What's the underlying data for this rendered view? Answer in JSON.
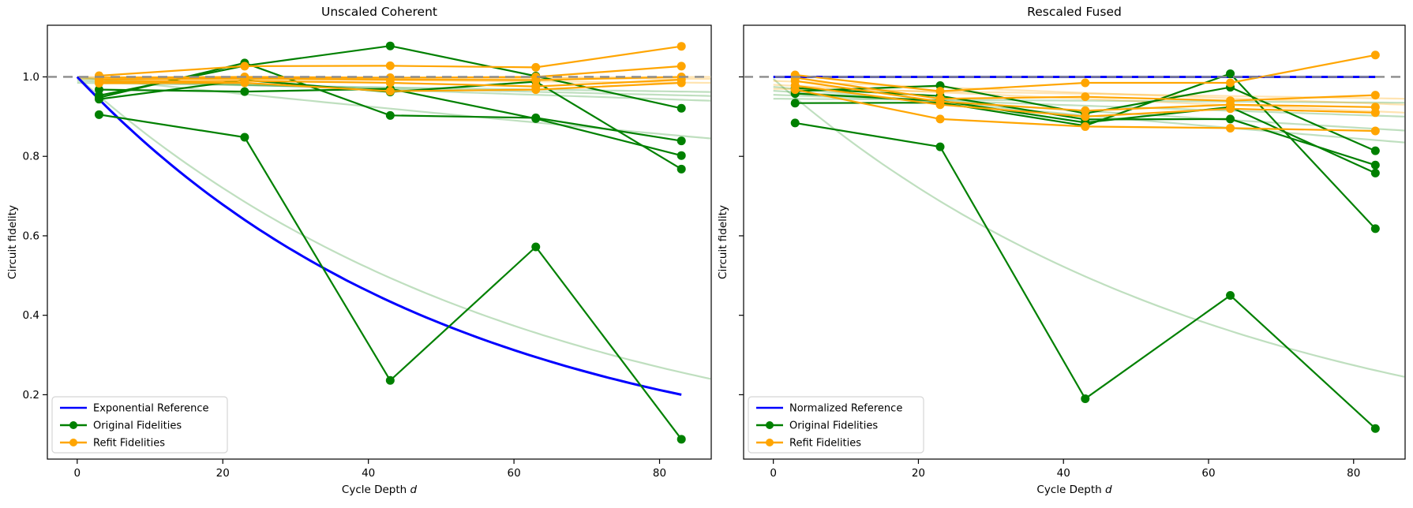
{
  "figure": {
    "background": "#ffffff"
  },
  "colors": {
    "reference_blue": "#0000ff",
    "original_green": "#008000",
    "refit_orange": "#ffa500",
    "dashed_gray": "#8c8c8c",
    "spine_black": "#000000",
    "legend_border": "#d5d5d5"
  },
  "chart_data": [
    {
      "type": "line",
      "title": "Unscaled Coherent",
      "xlabel": "Cycle Depth",
      "xlabel_var": "d",
      "ylabel": "Circuit fidelity",
      "xlim": [
        -4.1,
        87.1
      ],
      "ylim": [
        0.038,
        1.13
      ],
      "xticks": [
        "0",
        "20",
        "40",
        "60",
        "80"
      ],
      "xtick_values": [
        0,
        20,
        40,
        60,
        80
      ],
      "yticks": [
        "0.2",
        "0.4",
        "0.6",
        "0.8",
        "1.0"
      ],
      "ytick_values": [
        0.2,
        0.4,
        0.6,
        0.8,
        1.0
      ],
      "ytick_labels_visible": true,
      "hline_y": 1.0,
      "legend": [
        "Exponential Reference",
        "Original Fidelities",
        "Refit Fidelities"
      ],
      "legend_position": "lower-left",
      "reference": {
        "label": "Exponential Reference",
        "shape": "exp",
        "y0": 1.0,
        "y_end": 0.2,
        "x_start": 0,
        "x_end": 83
      },
      "x": [
        3,
        23,
        43,
        63,
        83
      ],
      "original_series": [
        {
          "name": "original-1",
          "values": [
            0.905,
            0.848,
            0.236,
            0.572,
            0.088
          ]
        },
        {
          "name": "original-2",
          "values": [
            0.953,
            1.028,
            1.078,
            1.002,
            0.921
          ]
        },
        {
          "name": "original-3",
          "values": [
            0.948,
            1.035,
            0.903,
            0.897,
            0.839
          ]
        },
        {
          "name": "original-4",
          "values": [
            0.944,
            0.992,
            0.962,
            0.988,
            0.768
          ]
        },
        {
          "name": "original-5",
          "values": [
            0.968,
            0.963,
            0.97,
            0.895,
            0.802
          ]
        }
      ],
      "refit_series": [
        {
          "name": "refit-1",
          "values": [
            1.003,
            1.027,
            1.028,
            1.024,
            1.077
          ]
        },
        {
          "name": "refit-2",
          "values": [
            0.998,
            1.0,
            0.998,
            1.0,
            1.027
          ]
        },
        {
          "name": "refit-3",
          "values": [
            0.993,
            0.996,
            0.993,
            0.992,
            1.0
          ]
        },
        {
          "name": "refit-4",
          "values": [
            0.988,
            0.99,
            0.985,
            0.976,
            0.993
          ]
        },
        {
          "name": "refit-5",
          "values": [
            0.984,
            0.985,
            0.964,
            0.968,
            0.985
          ]
        }
      ],
      "fit_curves_green": [
        {
          "y0": 1.0,
          "y_end": 0.24
        },
        {
          "y0": 1.0,
          "y_end": 0.845
        },
        {
          "y0": 0.995,
          "y_end": 0.94
        },
        {
          "y0": 0.99,
          "y_end": 0.952
        },
        {
          "y0": 0.985,
          "y_end": 0.962
        }
      ],
      "fit_curves_orange": [
        {
          "y0": 1.0,
          "y_end": 0.995
        },
        {
          "y0": 0.998,
          "y_end": 0.985
        },
        {
          "y0": 0.995,
          "y_end": 1.0
        }
      ]
    },
    {
      "type": "line",
      "title": "Rescaled Fused",
      "xlabel": "Cycle Depth",
      "xlabel_var": "d",
      "ylabel": "Circuit fidelity",
      "xlim": [
        -4.1,
        87.1
      ],
      "ylim": [
        0.038,
        1.13
      ],
      "xticks": [
        "0",
        "20",
        "40",
        "60",
        "80"
      ],
      "xtick_values": [
        0,
        20,
        40,
        60,
        80
      ],
      "yticks": [
        "0.2",
        "0.4",
        "0.6",
        "0.8",
        "1.0"
      ],
      "ytick_values": [
        0.2,
        0.4,
        0.6,
        0.8,
        1.0
      ],
      "ytick_labels_visible": false,
      "hline_y": 1.0,
      "legend": [
        "Normalized Reference",
        "Original Fidelities",
        "Refit Fidelities"
      ],
      "legend_position": "lower-left",
      "reference": {
        "label": "Normalized Reference",
        "shape": "flat",
        "y0": 1.0,
        "y_end": 1.0,
        "x_start": 0,
        "x_end": 83
      },
      "x": [
        3,
        23,
        43,
        63,
        83
      ],
      "original_series": [
        {
          "name": "original-1",
          "values": [
            0.884,
            0.824,
            0.19,
            0.45,
            0.115
          ]
        },
        {
          "name": "original-2",
          "values": [
            0.934,
            0.935,
            0.877,
            1.008,
            0.618
          ]
        },
        {
          "name": "original-3",
          "values": [
            0.964,
            0.978,
            0.908,
            0.974,
            0.814
          ]
        },
        {
          "name": "original-4",
          "values": [
            0.972,
            0.952,
            0.893,
            0.894,
            0.778
          ]
        },
        {
          "name": "original-5",
          "values": [
            0.958,
            0.94,
            0.885,
            0.924,
            0.758
          ]
        }
      ],
      "refit_series": [
        {
          "name": "refit-1",
          "values": [
            1.005,
            0.964,
            0.985,
            0.985,
            1.055
          ]
        },
        {
          "name": "refit-2",
          "values": [
            0.998,
            0.945,
            0.95,
            0.94,
            0.954
          ]
        },
        {
          "name": "refit-3",
          "values": [
            0.99,
            0.938,
            0.915,
            0.93,
            0.924
          ]
        },
        {
          "name": "refit-4",
          "values": [
            0.978,
            0.93,
            0.9,
            0.92,
            0.91
          ]
        },
        {
          "name": "refit-5",
          "values": [
            0.968,
            0.894,
            0.875,
            0.871,
            0.864
          ]
        }
      ],
      "fit_curves_green": [
        {
          "y0": 0.995,
          "y_end": 0.245
        },
        {
          "y0": 0.975,
          "y_end": 0.835
        },
        {
          "y0": 0.965,
          "y_end": 0.865
        },
        {
          "y0": 0.955,
          "y_end": 0.9
        },
        {
          "y0": 0.945,
          "y_end": 0.935
        }
      ],
      "fit_curves_orange": [
        {
          "y0": 0.99,
          "y_end": 0.93
        },
        {
          "y0": 0.98,
          "y_end": 0.91
        },
        {
          "y0": 0.97,
          "y_end": 0.945
        }
      ]
    }
  ]
}
